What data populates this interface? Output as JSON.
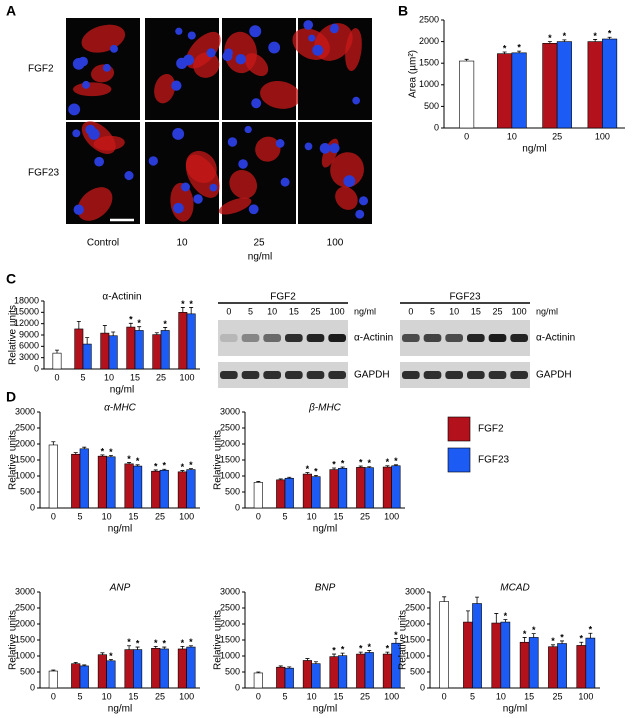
{
  "panel_labels": [
    "A",
    "B",
    "C",
    "D"
  ],
  "panel_a": {
    "row_labels": [
      "FGF2",
      "FGF23"
    ],
    "column_labels": [
      "Control",
      "10",
      "25",
      "100"
    ],
    "x_label": "ng/ml"
  },
  "blots": {
    "lanes": [
      "0",
      "5",
      "10",
      "15",
      "25",
      "100"
    ],
    "unit": "ng/ml",
    "rows": [
      "α-Actinin",
      "GAPDH"
    ],
    "panels": [
      {
        "title": "FGF2"
      },
      {
        "title": "FGF23"
      }
    ]
  },
  "legend": [
    {
      "name": "FGF2",
      "color": "#b3121c"
    },
    {
      "name": "FGF23",
      "color": "#1c5cf5"
    }
  ],
  "chart_data": [
    {
      "type": "bar",
      "ylabel": "Area (µm²)",
      "xlabel": "ng/ml",
      "categories": [
        "0",
        "10",
        "25",
        "100"
      ],
      "ylim": [
        0,
        2500
      ],
      "yticks": [
        0,
        500,
        1000,
        1500,
        2000,
        2500
      ],
      "series": [
        {
          "color": "#ffffff",
          "values": [
            1550,
            null,
            null,
            null
          ],
          "errors": [
            40,
            null,
            null,
            null
          ]
        },
        {
          "color": "#b3121c",
          "values": [
            null,
            1720,
            1960,
            2000
          ],
          "errors": [
            null,
            40,
            40,
            50
          ],
          "annotations": [
            null,
            "*",
            "*",
            "*"
          ]
        },
        {
          "color": "#1c5cf5",
          "values": [
            null,
            1740,
            2000,
            2060
          ],
          "errors": [
            null,
            40,
            40,
            40
          ],
          "annotations": [
            null,
            "*",
            "*",
            "*"
          ]
        }
      ]
    },
    {
      "type": "bar",
      "title": "α-Actinin",
      "ylabel": "Relative units",
      "xlabel": "ng/ml",
      "categories": [
        "0",
        "5",
        "10",
        "15",
        "25",
        "100"
      ],
      "ylim": [
        0,
        18000
      ],
      "yticks": [
        0,
        3000,
        6000,
        9000,
        12000,
        15000,
        18000
      ],
      "series": [
        {
          "color": "#ffffff",
          "values": [
            4200,
            null,
            null,
            null,
            null,
            null
          ],
          "errors": [
            800,
            null,
            null,
            null,
            null,
            null
          ]
        },
        {
          "color": "#b3121c",
          "values": [
            null,
            10600,
            9500,
            11100,
            9100,
            15000
          ],
          "errors": [
            null,
            2000,
            2000,
            1000,
            500,
            1300
          ],
          "annotations": [
            null,
            null,
            null,
            "*",
            null,
            "*"
          ]
        },
        {
          "color": "#1c5cf5",
          "values": [
            null,
            6600,
            8800,
            10200,
            10200,
            14600
          ],
          "errors": [
            null,
            1700,
            1000,
            1000,
            800,
            1700
          ],
          "annotations": [
            null,
            null,
            null,
            "*",
            "*",
            "*"
          ]
        }
      ]
    },
    {
      "type": "bar",
      "title": "α-MHC",
      "title_italic": true,
      "ylabel": "Relative units",
      "xlabel": "ng/ml",
      "categories": [
        "0",
        "5",
        "10",
        "15",
        "25",
        "100"
      ],
      "ylim": [
        0,
        3000
      ],
      "yticks": [
        0,
        500,
        1000,
        1500,
        2000,
        2500,
        3000
      ],
      "series": [
        {
          "color": "#ffffff",
          "values": [
            1970,
            null,
            null,
            null,
            null,
            null
          ],
          "errors": [
            100,
            null,
            null,
            null,
            null,
            null
          ]
        },
        {
          "color": "#b3121c",
          "values": [
            null,
            1680,
            1620,
            1380,
            1150,
            1130
          ],
          "errors": [
            null,
            50,
            40,
            40,
            40,
            40
          ],
          "annotations": [
            null,
            null,
            "*",
            "*",
            "*",
            "*"
          ]
        },
        {
          "color": "#1c5cf5",
          "values": [
            null,
            1850,
            1600,
            1310,
            1180,
            1200
          ],
          "errors": [
            null,
            50,
            40,
            40,
            30,
            30
          ],
          "annotations": [
            null,
            null,
            "*",
            "*",
            "*",
            "*"
          ]
        }
      ]
    },
    {
      "type": "bar",
      "title": "β-MHC",
      "title_italic": true,
      "ylabel": "Relative units",
      "xlabel": "ng/ml",
      "categories": [
        "0",
        "5",
        "10",
        "15",
        "25",
        "100"
      ],
      "ylim": [
        0,
        3000
      ],
      "yticks": [
        0,
        500,
        1000,
        1500,
        2000,
        2500,
        3000
      ],
      "series": [
        {
          "color": "#ffffff",
          "values": [
            800,
            null,
            null,
            null,
            null,
            null
          ],
          "errors": [
            30,
            null,
            null,
            null,
            null,
            null
          ]
        },
        {
          "color": "#b3121c",
          "values": [
            null,
            880,
            1060,
            1200,
            1270,
            1280
          ],
          "errors": [
            null,
            30,
            50,
            50,
            40,
            40
          ],
          "annotations": [
            null,
            null,
            "*",
            "*",
            "*",
            "*"
          ]
        },
        {
          "color": "#1c5cf5",
          "values": [
            null,
            930,
            980,
            1240,
            1260,
            1320
          ],
          "errors": [
            null,
            30,
            40,
            40,
            30,
            30
          ],
          "annotations": [
            null,
            null,
            "*",
            "*",
            "*",
            "*"
          ]
        }
      ]
    },
    {
      "type": "bar",
      "title": "ANP",
      "title_italic": true,
      "ylabel": "Relative units",
      "xlabel": "ng/ml",
      "categories": [
        "0",
        "5",
        "10",
        "15",
        "25",
        "100"
      ],
      "ylim": [
        0,
        3000
      ],
      "yticks": [
        0,
        500,
        1000,
        1500,
        2000,
        2500,
        3000
      ],
      "series": [
        {
          "color": "#ffffff",
          "values": [
            530,
            null,
            null,
            null,
            null,
            null
          ],
          "errors": [
            30,
            null,
            null,
            null,
            null,
            null
          ]
        },
        {
          "color": "#b3121c",
          "values": [
            null,
            760,
            1040,
            1200,
            1240,
            1220
          ],
          "errors": [
            null,
            40,
            60,
            120,
            60,
            80
          ],
          "annotations": [
            null,
            null,
            null,
            "*",
            "*",
            "*"
          ]
        },
        {
          "color": "#1c5cf5",
          "values": [
            null,
            690,
            850,
            1200,
            1220,
            1280
          ],
          "errors": [
            null,
            30,
            40,
            80,
            60,
            40
          ],
          "annotations": [
            null,
            null,
            "*",
            "*",
            "*",
            "*"
          ]
        }
      ]
    },
    {
      "type": "bar",
      "title": "BNP",
      "title_italic": true,
      "ylabel": "Relative units",
      "xlabel": "ng/ml",
      "categories": [
        "0",
        "5",
        "10",
        "15",
        "25",
        "100"
      ],
      "ylim": [
        0,
        3000
      ],
      "yticks": [
        0,
        500,
        1000,
        1500,
        2000,
        2500,
        3000
      ],
      "series": [
        {
          "color": "#ffffff",
          "values": [
            470,
            null,
            null,
            null,
            null,
            null
          ],
          "errors": [
            30,
            null,
            null,
            null,
            null,
            null
          ]
        },
        {
          "color": "#b3121c",
          "values": [
            null,
            650,
            860,
            980,
            1060,
            1060
          ],
          "errors": [
            null,
            40,
            60,
            80,
            60,
            60
          ],
          "annotations": [
            null,
            null,
            null,
            "*",
            "*",
            "*"
          ]
        },
        {
          "color": "#1c5cf5",
          "values": [
            null,
            620,
            760,
            1010,
            1110,
            1400
          ],
          "errors": [
            null,
            40,
            60,
            80,
            60,
            150
          ],
          "annotations": [
            null,
            null,
            null,
            "*",
            "*",
            "*"
          ]
        }
      ]
    },
    {
      "type": "bar",
      "title": "MCAD",
      "title_italic": true,
      "ylabel": "Relative units",
      "xlabel": "ng/ml",
      "categories": [
        "0",
        "5",
        "10",
        "15",
        "25",
        "100"
      ],
      "ylim": [
        0,
        3000
      ],
      "yticks": [
        0,
        500,
        1000,
        1500,
        2000,
        2500,
        3000
      ],
      "series": [
        {
          "color": "#ffffff",
          "values": [
            2700,
            null,
            null,
            null,
            null,
            null
          ],
          "errors": [
            150,
            null,
            null,
            null,
            null,
            null
          ]
        },
        {
          "color": "#b3121c",
          "values": [
            null,
            2060,
            2030,
            1430,
            1290,
            1330
          ],
          "errors": [
            null,
            350,
            300,
            150,
            60,
            100
          ],
          "annotations": [
            null,
            null,
            null,
            "*",
            "*",
            "*"
          ]
        },
        {
          "color": "#1c5cf5",
          "values": [
            null,
            2640,
            2060,
            1580,
            1390,
            1560
          ],
          "errors": [
            null,
            200,
            80,
            120,
            80,
            150
          ],
          "annotations": [
            null,
            null,
            "*",
            "*",
            "*",
            "*"
          ]
        }
      ]
    }
  ]
}
